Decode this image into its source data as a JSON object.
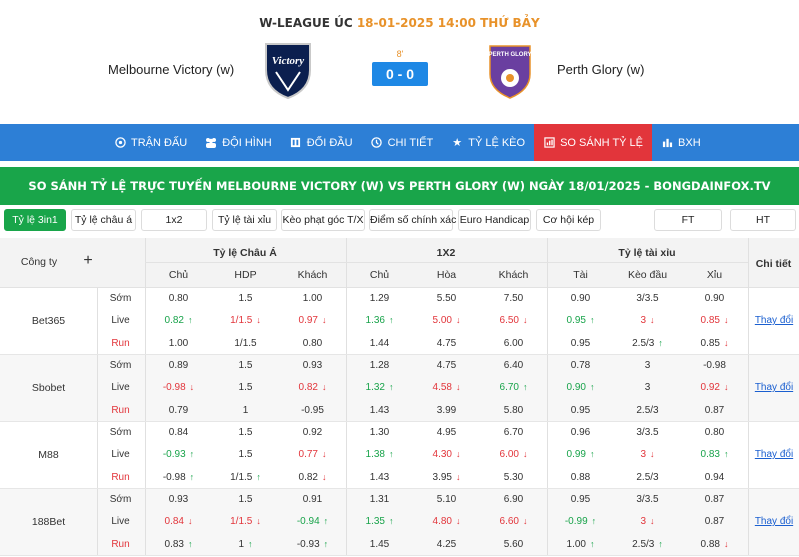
{
  "match": {
    "league": "W-LEAGUE ÚC",
    "datetime": "18-01-2025 14:00 THỨ BẢY",
    "home": "Melbourne Victory (w)",
    "away": "Perth Glory (w)",
    "minute": "8'",
    "score": "0 - 0",
    "home_logo_text": "Victory",
    "away_logo_text": "PERTH GLORY"
  },
  "nav": [
    {
      "label": "TRẬN ĐẤU",
      "icon": "soccer-ball-icon"
    },
    {
      "label": "ĐỘI HÌNH",
      "icon": "team-icon"
    },
    {
      "label": "ĐỐI ĐẦU",
      "icon": "versus-icon"
    },
    {
      "label": "CHI TIẾT",
      "icon": "details-icon"
    },
    {
      "label": "TỶ LỆ KÈO",
      "icon": "star-icon"
    },
    {
      "label": "SO SÁNH TỶ LỆ",
      "icon": "compare-icon",
      "active": true
    },
    {
      "label": "BXH",
      "icon": "bar-chart-icon"
    }
  ],
  "banner": "SO SÁNH TỶ LỆ TRỰC TUYẾN MELBOURNE VICTORY (W) VS PERTH GLORY (W) NGÀY 18/01/2025 - BONGDAINFOX.TV",
  "tabs": [
    "Tỷ lệ 3in1",
    "Tỷ lệ châu á",
    "1x2",
    "Tỷ lệ tài xỉu",
    "Kèo phạt góc T/X",
    "Điểm số chính xác",
    "Euro Handicap",
    "Cơ hội kép",
    "FT",
    "HT"
  ],
  "table": {
    "company_header": "Công ty",
    "groups": [
      "Tỷ lệ Châu Á",
      "1X2",
      "Tỷ lệ tài xỉu",
      "Chi tiết"
    ],
    "subheaders": [
      "Chủ",
      "HDP",
      "Khách",
      "Chủ",
      "Hòa",
      "Khách",
      "Tài",
      "Kèo đầu",
      "Xỉu"
    ],
    "row_labels": [
      "Sớm",
      "Live",
      "Run"
    ],
    "change_label": "Thay đổi",
    "bookmakers": [
      {
        "name": "Bet365",
        "rows": [
          [
            [
              "0.80",
              ""
            ],
            [
              "1.5",
              ""
            ],
            [
              "1.00",
              ""
            ],
            [
              "1.29",
              ""
            ],
            [
              "5.50",
              ""
            ],
            [
              "7.50",
              ""
            ],
            [
              "0.90",
              ""
            ],
            [
              "3/3.5",
              ""
            ],
            [
              "0.90",
              ""
            ]
          ],
          [
            [
              "0.82",
              "up"
            ],
            [
              "1/1.5",
              "dn"
            ],
            [
              "0.97",
              "dn"
            ],
            [
              "1.36",
              "up"
            ],
            [
              "5.00",
              "dn"
            ],
            [
              "6.50",
              "dn"
            ],
            [
              "0.95",
              "up"
            ],
            [
              "3",
              "dn"
            ],
            [
              "0.85",
              "dn"
            ]
          ],
          [
            [
              "1.00",
              ""
            ],
            [
              "1/1.5",
              ""
            ],
            [
              "0.80",
              ""
            ],
            [
              "1.44",
              ""
            ],
            [
              "4.75",
              ""
            ],
            [
              "6.00",
              ""
            ],
            [
              "0.95",
              ""
            ],
            [
              "2.5/3",
              "up"
            ],
            [
              "0.85",
              "dn"
            ]
          ]
        ]
      },
      {
        "name": "Sbobet",
        "rows": [
          [
            [
              "0.89",
              ""
            ],
            [
              "1.5",
              ""
            ],
            [
              "0.93",
              ""
            ],
            [
              "1.28",
              ""
            ],
            [
              "4.75",
              ""
            ],
            [
              "6.40",
              ""
            ],
            [
              "0.78",
              ""
            ],
            [
              "3",
              ""
            ],
            [
              "-0.98",
              ""
            ]
          ],
          [
            [
              "-0.98",
              "dn"
            ],
            [
              "1.5",
              ""
            ],
            [
              "0.82",
              "dn"
            ],
            [
              "1.32",
              "up"
            ],
            [
              "4.58",
              "dn"
            ],
            [
              "6.70",
              "up"
            ],
            [
              "0.90",
              "up"
            ],
            [
              "3",
              ""
            ],
            [
              "0.92",
              "dn"
            ]
          ],
          [
            [
              "0.79",
              ""
            ],
            [
              "1",
              ""
            ],
            [
              "-0.95",
              ""
            ],
            [
              "1.43",
              ""
            ],
            [
              "3.99",
              ""
            ],
            [
              "5.80",
              ""
            ],
            [
              "0.95",
              ""
            ],
            [
              "2.5/3",
              ""
            ],
            [
              "0.87",
              ""
            ]
          ]
        ]
      },
      {
        "name": "M88",
        "rows": [
          [
            [
              "0.84",
              ""
            ],
            [
              "1.5",
              ""
            ],
            [
              "0.92",
              ""
            ],
            [
              "1.30",
              ""
            ],
            [
              "4.95",
              ""
            ],
            [
              "6.70",
              ""
            ],
            [
              "0.96",
              ""
            ],
            [
              "3/3.5",
              ""
            ],
            [
              "0.80",
              ""
            ]
          ],
          [
            [
              "-0.93",
              "up"
            ],
            [
              "1.5",
              ""
            ],
            [
              "0.77",
              "dn"
            ],
            [
              "1.38",
              "up"
            ],
            [
              "4.30",
              "dn"
            ],
            [
              "6.00",
              "dn"
            ],
            [
              "0.99",
              "up"
            ],
            [
              "3",
              "dn"
            ],
            [
              "0.83",
              "up"
            ]
          ],
          [
            [
              "-0.98",
              "up"
            ],
            [
              "1/1.5",
              "up"
            ],
            [
              "0.82",
              "dn"
            ],
            [
              "1.43",
              ""
            ],
            [
              "3.95",
              "dn"
            ],
            [
              "5.30",
              ""
            ],
            [
              "0.88",
              ""
            ],
            [
              "2.5/3",
              ""
            ],
            [
              "0.94",
              ""
            ]
          ]
        ]
      },
      {
        "name": "188Bet",
        "rows": [
          [
            [
              "0.93",
              ""
            ],
            [
              "1.5",
              ""
            ],
            [
              "0.91",
              ""
            ],
            [
              "1.31",
              ""
            ],
            [
              "5.10",
              ""
            ],
            [
              "6.90",
              ""
            ],
            [
              "0.95",
              ""
            ],
            [
              "3/3.5",
              ""
            ],
            [
              "0.87",
              ""
            ]
          ],
          [
            [
              "0.84",
              "dn"
            ],
            [
              "1/1.5",
              "dn"
            ],
            [
              "-0.94",
              "up"
            ],
            [
              "1.35",
              "up"
            ],
            [
              "4.80",
              "dn"
            ],
            [
              "6.60",
              "dn"
            ],
            [
              "-0.99",
              "up"
            ],
            [
              "3",
              "dn"
            ],
            [
              "0.87",
              ""
            ]
          ],
          [
            [
              "0.83",
              "up"
            ],
            [
              "1",
              "up"
            ],
            [
              "-0.93",
              "up"
            ],
            [
              "1.45",
              ""
            ],
            [
              "4.25",
              ""
            ],
            [
              "5.60",
              ""
            ],
            [
              "1.00",
              "up"
            ],
            [
              "2.5/3",
              "up"
            ],
            [
              "0.88",
              "dn"
            ]
          ]
        ]
      }
    ]
  },
  "colors": {
    "nav_bg": "#2d7fd6",
    "active_tab": "#e2353b",
    "banner_bg": "#19a54a",
    "up": "#18a34a",
    "down": "#e2353b",
    "score_bg": "#1e88e5"
  }
}
